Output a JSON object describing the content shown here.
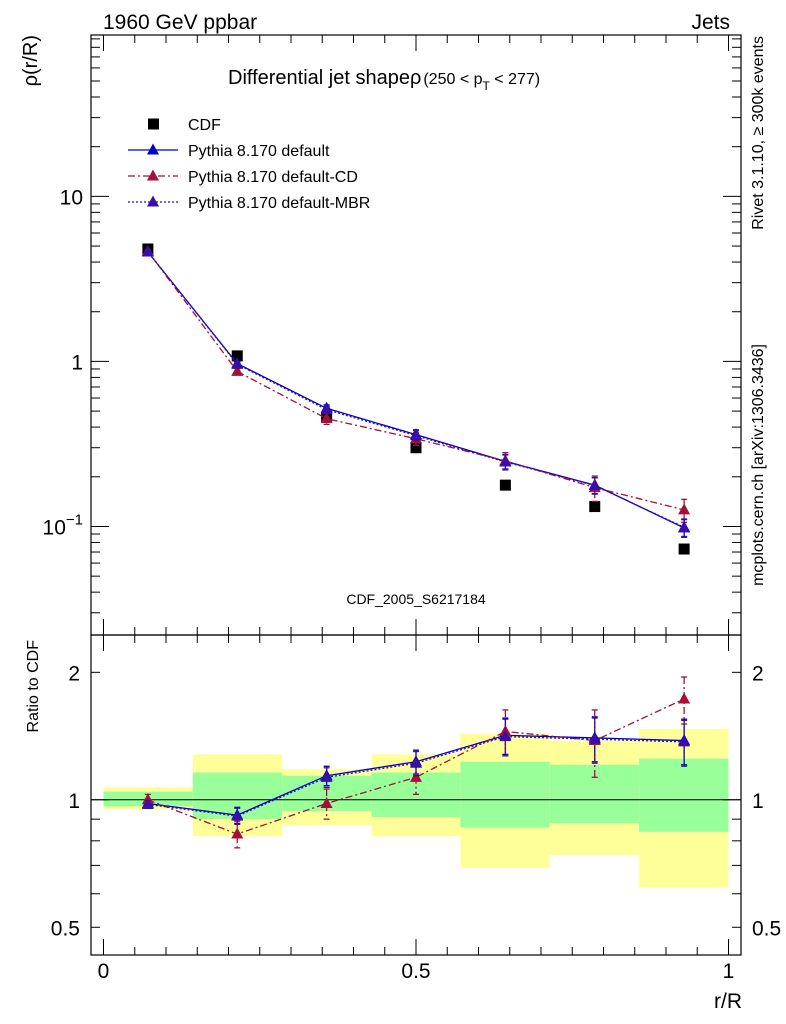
{
  "header": {
    "energy": "1960 GeV ppbar",
    "process": "Jets"
  },
  "side_labels": {
    "rivet": "Rivet 3.1.10, ≥ 300k events",
    "mcplots": "mcplots.cern.ch [arXiv:1306.3436]"
  },
  "analysis_id": "CDF_2005_S6217184",
  "chart_data": [
    {
      "type": "scatter",
      "title": "Differential jet shapeρ",
      "title_suffix": "(250 < p",
      "title_sub": "T",
      "title_end": " < 277)",
      "ylabel": "ρ(r/R)",
      "xlabel": "",
      "y_scale": "log",
      "xlim": [
        -0.02,
        1.02
      ],
      "ylim": [
        0.022,
        95
      ],
      "yticks": [
        {
          "value": 10,
          "label": "10"
        },
        {
          "value": 1,
          "label": "1"
        },
        {
          "value": 0.1,
          "label": "10",
          "sup": "−1"
        }
      ],
      "legend_position": "top-left",
      "x": [
        0.071,
        0.214,
        0.357,
        0.5,
        0.643,
        0.786,
        0.929
      ],
      "series": [
        {
          "name": "CDF",
          "color": "#000000",
          "marker": "square",
          "line": "none",
          "values": [
            4.8,
            1.08,
            0.46,
            0.3,
            0.178,
            0.132,
            0.073
          ],
          "errors": [
            0,
            0,
            0,
            0,
            0,
            0,
            0
          ]
        },
        {
          "name": "Pythia 8.170 default",
          "color": "#0000cc",
          "marker": "triangle",
          "line": "solid",
          "values": [
            4.6,
            0.97,
            0.52,
            0.36,
            0.248,
            0.178,
            0.098
          ],
          "errors": [
            0.1,
            0.03,
            0.025,
            0.025,
            0.025,
            0.02,
            0.012
          ]
        },
        {
          "name": "Pythia 8.170 default-CD",
          "color": "#a50f3a",
          "marker": "triangle",
          "line": "dashdot",
          "values": [
            4.65,
            0.87,
            0.45,
            0.34,
            0.25,
            0.172,
            0.126
          ],
          "errors": [
            0.1,
            0.04,
            0.035,
            0.03,
            0.03,
            0.03,
            0.02
          ]
        },
        {
          "name": "Pythia 8.170 default-MBR",
          "color": "#3a0fa5",
          "marker": "triangle",
          "line": "dotted",
          "values": [
            4.62,
            0.96,
            0.51,
            0.355,
            0.246,
            0.177,
            0.099
          ],
          "errors": [
            0.1,
            0.03,
            0.025,
            0.025,
            0.025,
            0.02,
            0.012
          ]
        }
      ]
    },
    {
      "type": "scatter",
      "title": "",
      "ylabel": "Ratio to CDF",
      "xlabel": "r/R",
      "y_scale": "log",
      "xlim": [
        -0.02,
        1.02
      ],
      "ylim": [
        0.43,
        2.45
      ],
      "reference_line": 1,
      "yticks": [
        {
          "value": 2,
          "label": "2"
        },
        {
          "value": 1,
          "label": "1"
        },
        {
          "value": 0.5,
          "label": "0.5"
        }
      ],
      "xticks": [
        {
          "value": 0,
          "label": "0"
        },
        {
          "value": 0.5,
          "label": "0.5"
        },
        {
          "value": 1,
          "label": "1"
        }
      ],
      "x": [
        0.071,
        0.214,
        0.357,
        0.5,
        0.643,
        0.786,
        0.929
      ],
      "bands": [
        {
          "x0": 0.0,
          "x1": 0.143,
          "yellow": [
            0.95,
            1.07
          ],
          "green": [
            0.965,
            1.045
          ]
        },
        {
          "x0": 0.143,
          "x1": 0.286,
          "yellow": [
            0.82,
            1.28
          ],
          "green": [
            0.9,
            1.16
          ]
        },
        {
          "x0": 0.286,
          "x1": 0.429,
          "yellow": [
            0.87,
            1.18
          ],
          "green": [
            0.94,
            1.14
          ]
        },
        {
          "x0": 0.429,
          "x1": 0.571,
          "yellow": [
            0.82,
            1.28
          ],
          "green": [
            0.91,
            1.16
          ]
        },
        {
          "x0": 0.571,
          "x1": 0.714,
          "yellow": [
            0.69,
            1.43
          ],
          "green": [
            0.86,
            1.23
          ]
        },
        {
          "x0": 0.714,
          "x1": 0.857,
          "yellow": [
            0.74,
            1.38
          ],
          "green": [
            0.88,
            1.21
          ]
        },
        {
          "x0": 0.857,
          "x1": 1.0,
          "yellow": [
            0.62,
            1.47
          ],
          "green": [
            0.84,
            1.25
          ]
        }
      ],
      "series": [
        {
          "name": "Pythia 8.170 default",
          "color": "#0000cc",
          "marker": "triangle",
          "line": "solid",
          "values": [
            0.98,
            0.92,
            1.14,
            1.23,
            1.42,
            1.4,
            1.38
          ],
          "errors": [
            0.02,
            0.04,
            0.06,
            0.08,
            0.14,
            0.17,
            0.17
          ]
        },
        {
          "name": "Pythia 8.170 default-CD",
          "color": "#a50f3a",
          "marker": "triangle",
          "line": "dashdot",
          "values": [
            1.0,
            0.83,
            0.98,
            1.13,
            1.45,
            1.38,
            1.73
          ],
          "errors": [
            0.03,
            0.06,
            0.08,
            0.1,
            0.18,
            0.25,
            0.22
          ]
        },
        {
          "name": "Pythia 8.170 default-MBR",
          "color": "#3a0fa5",
          "marker": "triangle",
          "line": "dotted",
          "values": [
            0.975,
            0.915,
            1.13,
            1.22,
            1.41,
            1.39,
            1.37
          ],
          "errors": [
            0.02,
            0.04,
            0.06,
            0.08,
            0.14,
            0.17,
            0.17
          ]
        }
      ]
    }
  ]
}
